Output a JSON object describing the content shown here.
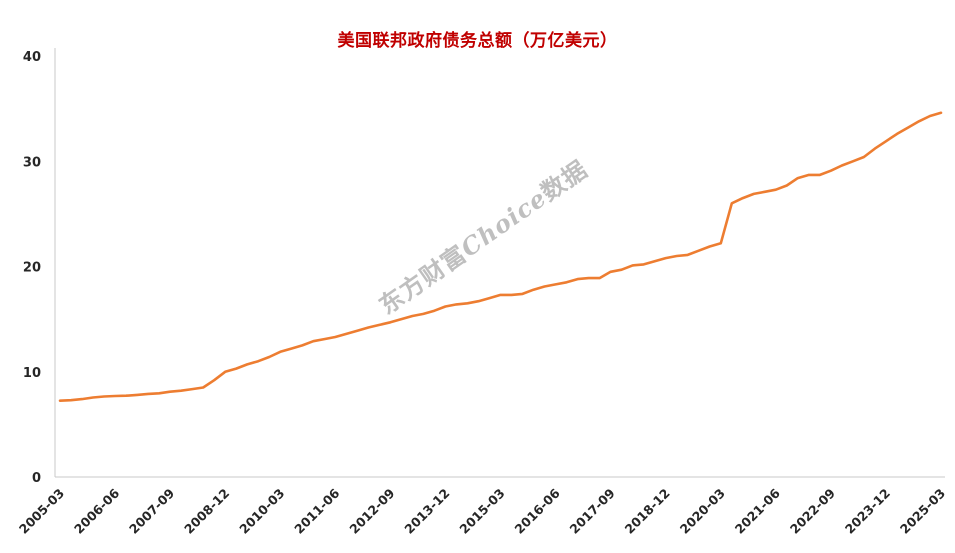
{
  "chart_data": {
    "type": "line",
    "title": "美国联邦政府债务总额（万亿美元）",
    "title_color": "#c00000",
    "line_color": "#ed7d31",
    "axis_color": "#c9c9c9",
    "tick_label_color": "#262626",
    "xlabel": "",
    "ylabel": "",
    "ylim": [
      0,
      40
    ],
    "y_ticks": [
      0,
      10,
      20,
      30,
      40
    ],
    "grid": false,
    "legend": "none",
    "tick_every": 5,
    "x_tick_labels": [
      "2005-03",
      "2006-06",
      "2007-09",
      "2008-12",
      "2010-03",
      "2011-06",
      "2012-09",
      "2013-12",
      "2015-03",
      "2016-06",
      "2017-09",
      "2018-12",
      "2020-03",
      "2021-06",
      "2022-09",
      "2023-12",
      "2025-03"
    ],
    "x": [
      "2005-03",
      "2005-06",
      "2005-09",
      "2005-12",
      "2006-03",
      "2006-06",
      "2006-09",
      "2006-12",
      "2007-03",
      "2007-06",
      "2007-09",
      "2007-12",
      "2008-03",
      "2008-06",
      "2008-09",
      "2008-12",
      "2009-03",
      "2009-06",
      "2009-09",
      "2009-12",
      "2010-03",
      "2010-06",
      "2010-09",
      "2010-12",
      "2011-03",
      "2011-06",
      "2011-09",
      "2011-12",
      "2012-03",
      "2012-06",
      "2012-09",
      "2012-12",
      "2013-03",
      "2013-06",
      "2013-09",
      "2013-12",
      "2014-03",
      "2014-06",
      "2014-09",
      "2014-12",
      "2015-03",
      "2015-06",
      "2015-09",
      "2015-12",
      "2016-03",
      "2016-06",
      "2016-09",
      "2016-12",
      "2017-03",
      "2017-06",
      "2017-09",
      "2017-12",
      "2018-03",
      "2018-06",
      "2018-09",
      "2018-12",
      "2019-03",
      "2019-06",
      "2019-09",
      "2019-12",
      "2020-03",
      "2020-06",
      "2020-09",
      "2020-12",
      "2021-03",
      "2021-06",
      "2021-09",
      "2021-12",
      "2022-03",
      "2022-06",
      "2022-09",
      "2022-12",
      "2023-03",
      "2023-06",
      "2023-09",
      "2023-12",
      "2024-03",
      "2024-06",
      "2024-09",
      "2024-12",
      "2025-03"
    ],
    "values": [
      7.25,
      7.3,
      7.4,
      7.55,
      7.65,
      7.7,
      7.72,
      7.8,
      7.9,
      7.95,
      8.1,
      8.2,
      8.35,
      8.5,
      9.2,
      10.0,
      10.3,
      10.7,
      11.0,
      11.4,
      11.9,
      12.2,
      12.5,
      12.9,
      13.1,
      13.3,
      13.6,
      13.9,
      14.2,
      14.45,
      14.7,
      15.0,
      15.3,
      15.5,
      15.8,
      16.2,
      16.4,
      16.5,
      16.7,
      17.0,
      17.3,
      17.3,
      17.4,
      17.8,
      18.1,
      18.3,
      18.5,
      18.8,
      18.9,
      18.9,
      19.5,
      19.7,
      20.1,
      20.2,
      20.5,
      20.8,
      21.0,
      21.1,
      21.5,
      21.9,
      22.2,
      26.0,
      26.5,
      26.9,
      27.1,
      27.3,
      27.7,
      28.4,
      28.7,
      28.7,
      29.1,
      29.6,
      30.0,
      30.4,
      31.2,
      31.9,
      32.6,
      33.2,
      33.8,
      34.3,
      34.6
    ]
  },
  "watermark": {
    "prefix": "东方财富",
    "brand": "Choice",
    "suffix": "数据",
    "full_text": "东方财富Choice数据"
  }
}
